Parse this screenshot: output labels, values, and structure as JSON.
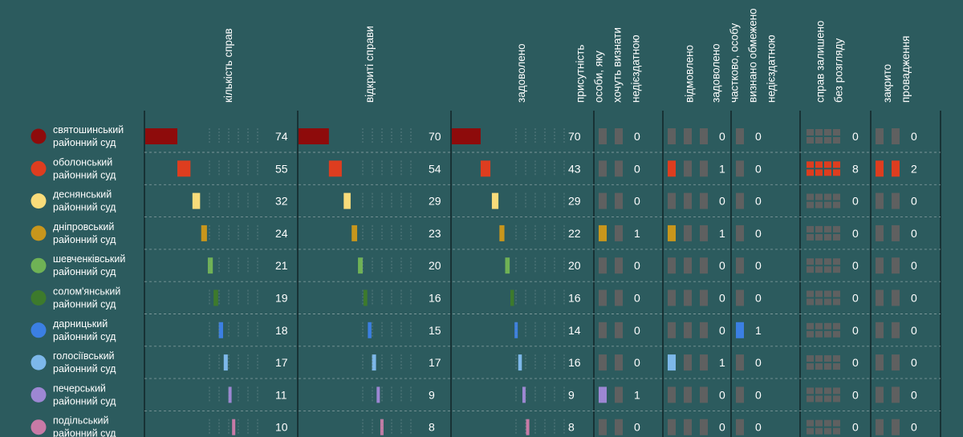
{
  "chart_data": {
    "type": "table",
    "columns": [
      {
        "key": "cases",
        "label_lines": [
          "кількість справ"
        ],
        "kind": "bar",
        "max": 74
      },
      {
        "key": "opened",
        "label_lines": [
          "відкриті справи"
        ],
        "kind": "bar",
        "max": 74
      },
      {
        "key": "granted",
        "label_lines": [
          "задоволено"
        ],
        "kind": "bar",
        "max": 74
      },
      {
        "key": "presence",
        "label_lines": [
          "присутність",
          "особи, яку",
          "хочуть визнати",
          "недієздатною"
        ],
        "kind": "squares",
        "slots": 2
      },
      {
        "key": "refused",
        "label_lines": [
          "відмовлено"
        ],
        "kind": "squares",
        "slots": 3
      },
      {
        "key": "partial",
        "label_lines": [
          "задоволено",
          "частково, особу",
          "визнано обмежено",
          "недієздатною"
        ],
        "kind": "squares",
        "slots": 1
      },
      {
        "key": "left",
        "label_lines": [
          "справ залишено",
          "без розгляду"
        ],
        "kind": "grid",
        "slots": 8
      },
      {
        "key": "closed",
        "label_lines": [
          "закрито",
          "провадження"
        ],
        "kind": "squares",
        "slots": 2
      }
    ],
    "rows": [
      {
        "name": [
          "святошинський",
          "районний суд"
        ],
        "color": "#8e0b0b",
        "values": [
          74,
          70,
          70,
          0,
          0,
          0,
          0,
          0
        ]
      },
      {
        "name": [
          "оболонський",
          "районний суд"
        ],
        "color": "#de3d1f",
        "values": [
          55,
          54,
          43,
          0,
          1,
          0,
          8,
          2
        ]
      },
      {
        "name": [
          "деснянський",
          "районний суд"
        ],
        "color": "#f9dc7a",
        "values": [
          32,
          29,
          29,
          0,
          0,
          0,
          0,
          0
        ]
      },
      {
        "name": [
          "дніпровський",
          "районний суд"
        ],
        "color": "#c8961c",
        "values": [
          24,
          23,
          22,
          1,
          1,
          0,
          0,
          0
        ]
      },
      {
        "name": [
          "шевченківський",
          "районний суд"
        ],
        "color": "#6fb255",
        "values": [
          21,
          20,
          20,
          0,
          0,
          0,
          0,
          0
        ]
      },
      {
        "name": [
          "солом'янський",
          "районний суд"
        ],
        "color": "#3d7a2c",
        "values": [
          19,
          16,
          16,
          0,
          0,
          0,
          0,
          0
        ]
      },
      {
        "name": [
          "дарницький",
          "районний суд"
        ],
        "color": "#3b7fe3",
        "values": [
          18,
          15,
          14,
          0,
          0,
          1,
          0,
          0
        ]
      },
      {
        "name": [
          "голосіївський",
          "районний суд"
        ],
        "color": "#7db8ea",
        "values": [
          17,
          17,
          16,
          0,
          1,
          0,
          0,
          0
        ]
      },
      {
        "name": [
          "печерський",
          "районний суд"
        ],
        "color": "#9d87d3",
        "values": [
          11,
          9,
          9,
          1,
          0,
          0,
          0,
          0
        ]
      },
      {
        "name": [
          "подільський",
          "районний суд"
        ],
        "color": "#c87aa6",
        "values": [
          10,
          8,
          8,
          0,
          0,
          0,
          0,
          0
        ]
      }
    ],
    "colors": {
      "background": "#2c5b5e",
      "inactive": "#5f6060",
      "text": "#ffffff",
      "divider": "#0f2224"
    }
  }
}
